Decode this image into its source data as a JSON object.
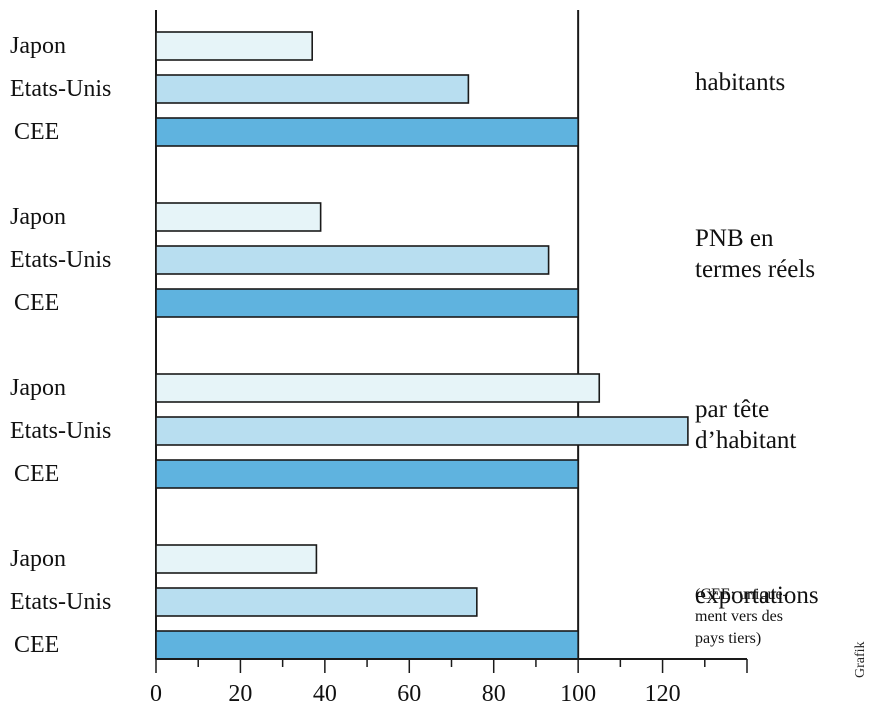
{
  "chart_data": {
    "type": "bar",
    "orientation": "horizontal",
    "xlim": [
      0,
      140
    ],
    "reference_line": 100,
    "xticks": [
      0,
      20,
      40,
      60,
      80,
      100,
      120
    ],
    "legend": "none",
    "colors": {
      "Japon": "#e6f4f8",
      "Etats-Unis": "#b8def0",
      "CEE": "#5fb3df",
      "outline": "#1a1a1a"
    },
    "groups": [
      {
        "label_lines": [
          "habitants"
        ],
        "note_lines": [],
        "bars": [
          {
            "country": "Japon",
            "value": 37
          },
          {
            "country": "Etats-Unis",
            "value": 74
          },
          {
            "country": "CEE",
            "value": 100
          }
        ]
      },
      {
        "label_lines": [
          "PNB en",
          "termes réels"
        ],
        "note_lines": [],
        "bars": [
          {
            "country": "Japon",
            "value": 39
          },
          {
            "country": "Etats-Unis",
            "value": 93
          },
          {
            "country": "CEE",
            "value": 100
          }
        ]
      },
      {
        "label_lines": [
          "par tête",
          "d’habitant"
        ],
        "note_lines": [],
        "bars": [
          {
            "country": "Japon",
            "value": 105
          },
          {
            "country": "Etats-Unis",
            "value": 126
          },
          {
            "country": "CEE",
            "value": 100
          }
        ]
      },
      {
        "label_lines": [
          "exportations"
        ],
        "note_lines": [
          "(CEE: unique-",
          "ment vers des",
          "pays tiers)"
        ],
        "bars": [
          {
            "country": "Japon",
            "value": 38
          },
          {
            "country": "Etats-Unis",
            "value": 76
          },
          {
            "country": "CEE",
            "value": 100
          }
        ]
      }
    ]
  },
  "credit": "Grafik"
}
